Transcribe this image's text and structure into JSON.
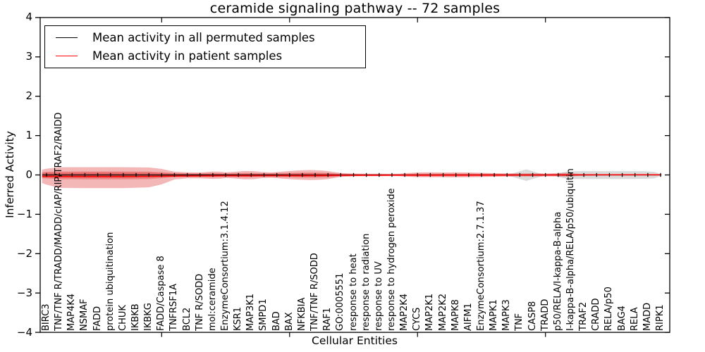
{
  "chart_data": {
    "type": "line",
    "title": "ceramide signaling pathway -- 72 samples",
    "xlabel": "Cellular Entities",
    "ylabel": "Inferred Activity",
    "ylim": [
      -4,
      4
    ],
    "ytick_values": [
      4,
      3,
      2,
      1,
      0,
      -1,
      -2,
      -3,
      -4
    ],
    "ytick_labels": [
      "4",
      "3",
      "2",
      "1",
      "0",
      "−1",
      "−2",
      "−3",
      "−4"
    ],
    "x_major_positions": [
      10,
      20,
      30,
      40
    ],
    "grid": false,
    "legend_position": "upper left",
    "categories": [
      "BIRC3",
      "TNF/TNF R/TRADD/MADD/cIAP/RIP/TRAF2/RAIDD",
      "MAP4K4",
      "NSMAF",
      "FADD",
      "protein ubiquitination",
      "CHUK",
      "IKBKB",
      "IKBKG",
      "FADD/Caspase 8",
      "TNFRSF1A",
      "BCL2",
      "TNF R/SODD",
      "mol:ceramide",
      "EnzymeConsortium:3.1.4.12",
      "KSR1",
      "MAP3K1",
      "SMPD1",
      "BAD",
      "BAX",
      "NFKBIA",
      "TNF/TNF R/SODD",
      "RAF1",
      "GO:0005551",
      "response to heat",
      "response to radiation",
      "response to UV",
      "response to hydrogen peroxide",
      "MAP2K4",
      "CYCS",
      "MAP2K1",
      "MAP2K2",
      "MAPK8",
      "AIFM1",
      "EnzymeConsortium:2.7.1.37",
      "MAPK1",
      "MAPK3",
      "TNF",
      "CASP8",
      "TRADD",
      "p50/RELA/I-kappa-B-alpha",
      "I-kappa-B-alpha/RELA/p50/ubiquitin",
      "TRAF2",
      "CRADD",
      "RELA/p50",
      "BAG4",
      "RELA",
      "MADD",
      "RIPK1"
    ],
    "series": [
      {
        "name": "Mean activity in all permuted samples",
        "color": "#000000",
        "marker": "|",
        "values": [
          0,
          0,
          0,
          0,
          0,
          0,
          0,
          0,
          0,
          0,
          0,
          0,
          0,
          0,
          0,
          0,
          0,
          0,
          0,
          0,
          0,
          0,
          0,
          0,
          0,
          0,
          0,
          0,
          0,
          0,
          0,
          0,
          0,
          0,
          0,
          0,
          0,
          0,
          0,
          0,
          0,
          0,
          0,
          0,
          0,
          0,
          0,
          0,
          0
        ]
      },
      {
        "name": "Mean activity in patient samples",
        "color": "#ff0000",
        "marker": "none",
        "values": [
          -0.037,
          -0.039,
          -0.039,
          -0.039,
          -0.039,
          -0.039,
          -0.039,
          -0.038,
          -0.036,
          -0.032,
          -0.028,
          -0.025,
          -0.023,
          -0.021,
          -0.02,
          -0.019,
          -0.019,
          -0.018,
          -0.018,
          -0.017,
          -0.016,
          -0.015,
          -0.013,
          -0.011,
          -0.009,
          -0.008,
          -0.007,
          -0.006,
          -0.006,
          -0.005,
          -0.005,
          -0.004,
          -0.004,
          -0.004,
          -0.003,
          -0.003,
          -0.003,
          -0.002,
          -0.002,
          -0.001,
          0.0,
          0.001,
          0.002,
          0.003,
          0.003,
          0.003,
          0.003,
          0.003,
          0.003
        ]
      }
    ],
    "bands": [
      {
        "name": "permuted-samples-spread-band",
        "color": "#aaaaaa",
        "opacity": 0.42,
        "points": [
          [
            39.7,
            0.004,
            -0.004
          ],
          [
            40.1,
            0.05,
            -0.06
          ],
          [
            40.7,
            0.09,
            -0.098
          ],
          [
            41.5,
            0.096,
            -0.102
          ],
          [
            43,
            0.097,
            -0.103
          ],
          [
            45,
            0.097,
            -0.103
          ],
          [
            46.8,
            0.093,
            -0.099
          ],
          [
            47.5,
            0.08,
            -0.088
          ],
          [
            47.9,
            0.03,
            -0.035
          ],
          [
            48.05,
            0.004,
            -0.004
          ]
        ]
      },
      {
        "name": "permuted-samples-spread-diamond",
        "color": "#aaaaaa",
        "opacity": 0.42,
        "points": [
          [
            35.8,
            0.003,
            -0.003
          ],
          [
            36.5,
            0.045,
            -0.055
          ],
          [
            37.5,
            0.143,
            -0.152
          ],
          [
            38.5,
            0.045,
            -0.055
          ],
          [
            39.2,
            0.003,
            -0.003
          ]
        ]
      },
      {
        "name": "patient-samples-spread-outer",
        "color": "#e03030",
        "opacity": 0.35,
        "points": [
          [
            -0.35,
            0.135,
            -0.205
          ],
          [
            0,
            0.16,
            -0.245
          ],
          [
            1,
            0.197,
            -0.33
          ],
          [
            3,
            0.197,
            -0.335
          ],
          [
            6,
            0.197,
            -0.335
          ],
          [
            8,
            0.19,
            -0.315
          ],
          [
            9,
            0.153,
            -0.24
          ],
          [
            9.6,
            0.11,
            -0.165
          ],
          [
            10,
            0.085,
            -0.115
          ],
          [
            11,
            0.066,
            -0.085
          ],
          [
            12,
            0.063,
            -0.085
          ],
          [
            13,
            0.088,
            -0.1
          ],
          [
            13.6,
            0.082,
            -0.094
          ],
          [
            14,
            0.066,
            -0.077
          ],
          [
            14.6,
            0.079,
            -0.088
          ],
          [
            15.5,
            0.1,
            -0.112
          ],
          [
            16.2,
            0.096,
            -0.107
          ],
          [
            16.8,
            0.076,
            -0.083
          ],
          [
            17.6,
            0.065,
            -0.072
          ],
          [
            18.5,
            0.088,
            -0.097
          ],
          [
            19.6,
            0.115,
            -0.118
          ],
          [
            20.6,
            0.125,
            -0.13
          ],
          [
            21.5,
            0.115,
            -0.122
          ],
          [
            22,
            0.097,
            -0.106
          ],
          [
            22.6,
            0.069,
            -0.071
          ],
          [
            23,
            0.048,
            -0.05
          ],
          [
            24,
            0.036,
            -0.036
          ],
          [
            25,
            0.032,
            -0.032
          ],
          [
            26,
            0.03,
            -0.03
          ],
          [
            27,
            0.027,
            -0.027
          ],
          [
            27.6,
            0.03,
            -0.03
          ],
          [
            28,
            0.044,
            -0.042
          ],
          [
            29,
            0.062,
            -0.056
          ],
          [
            30,
            0.066,
            -0.059
          ],
          [
            31,
            0.063,
            -0.059
          ],
          [
            32,
            0.066,
            -0.062
          ],
          [
            33,
            0.063,
            -0.059
          ],
          [
            34,
            0.054,
            -0.052
          ],
          [
            35,
            0.045,
            -0.045
          ],
          [
            36,
            0.039,
            -0.04
          ],
          [
            37,
            0.038,
            -0.038
          ],
          [
            38,
            0.041,
            -0.042
          ],
          [
            39,
            0.036,
            -0.036
          ],
          [
            40,
            0.048,
            -0.042
          ],
          [
            40.6,
            0.054,
            -0.045
          ],
          [
            41,
            0.045,
            -0.038
          ],
          [
            41.6,
            0.027,
            -0.024
          ],
          [
            42.2,
            0.02,
            -0.017
          ],
          [
            43.5,
            0.015,
            -0.012
          ],
          [
            45.5,
            0.013,
            -0.009
          ],
          [
            48.1,
            0.012,
            -0.008
          ]
        ]
      },
      {
        "name": "patient-samples-spread-mid",
        "color": "#e03030",
        "opacity": 0.35,
        "points": [
          [
            -0.35,
            0.072,
            -0.082
          ],
          [
            0,
            0.08,
            -0.09
          ],
          [
            1,
            0.09,
            -0.108
          ],
          [
            3,
            0.09,
            -0.112
          ],
          [
            6,
            0.09,
            -0.112
          ],
          [
            8,
            0.085,
            -0.105
          ],
          [
            9,
            0.072,
            -0.083
          ],
          [
            10,
            0.05,
            -0.06
          ],
          [
            11,
            0.042,
            -0.054
          ],
          [
            12,
            0.04,
            -0.054
          ],
          [
            13,
            0.05,
            -0.06
          ],
          [
            14,
            0.04,
            -0.05
          ],
          [
            15.5,
            0.052,
            -0.06
          ],
          [
            17,
            0.04,
            -0.046
          ],
          [
            18.5,
            0.048,
            -0.055
          ],
          [
            20,
            0.058,
            -0.066
          ],
          [
            21,
            0.06,
            -0.068
          ],
          [
            22,
            0.052,
            -0.06
          ],
          [
            23,
            0.032,
            -0.035
          ],
          [
            24,
            0.024,
            -0.026
          ],
          [
            26,
            0.021,
            -0.022
          ],
          [
            27.5,
            0.02,
            -0.021
          ],
          [
            29,
            0.033,
            -0.035
          ],
          [
            31,
            0.034,
            -0.036
          ],
          [
            33,
            0.034,
            -0.036
          ],
          [
            35,
            0.028,
            -0.03
          ],
          [
            37,
            0.023,
            -0.025
          ],
          [
            39,
            0.022,
            -0.024
          ],
          [
            40.5,
            0.028,
            -0.026
          ],
          [
            41.5,
            0.016,
            -0.015
          ],
          [
            42.5,
            0.01,
            -0.009
          ],
          [
            44,
            0.008,
            -0.007
          ],
          [
            48.1,
            0.007,
            -0.006
          ]
        ]
      },
      {
        "name": "patient-samples-spread-inner",
        "color": "#e03030",
        "opacity": 0.35,
        "points": [
          [
            -0.35,
            0.05,
            -0.06
          ],
          [
            0,
            0.055,
            -0.065
          ],
          [
            3,
            0.06,
            -0.075
          ],
          [
            6,
            0.06,
            -0.075
          ],
          [
            8,
            0.055,
            -0.07
          ],
          [
            9,
            0.045,
            -0.055
          ],
          [
            10,
            0.035,
            -0.042
          ],
          [
            12,
            0.028,
            -0.038
          ],
          [
            14,
            0.028,
            -0.035
          ],
          [
            16,
            0.032,
            -0.04
          ],
          [
            18,
            0.028,
            -0.034
          ],
          [
            20,
            0.04,
            -0.048
          ],
          [
            21,
            0.042,
            -0.05
          ],
          [
            22,
            0.036,
            -0.042
          ],
          [
            23,
            0.022,
            -0.025
          ],
          [
            25,
            0.016,
            -0.017
          ],
          [
            27.5,
            0.014,
            -0.015
          ],
          [
            29,
            0.022,
            -0.024
          ],
          [
            31,
            0.023,
            -0.025
          ],
          [
            33,
            0.023,
            -0.025
          ],
          [
            35,
            0.019,
            -0.02
          ],
          [
            37,
            0.016,
            -0.017
          ],
          [
            39,
            0.015,
            -0.016
          ],
          [
            40.5,
            0.018,
            -0.017
          ],
          [
            41.5,
            0.011,
            -0.01
          ],
          [
            43,
            0.007,
            -0.006
          ],
          [
            48.05,
            0.005,
            -0.004
          ]
        ]
      }
    ]
  },
  "legend": {
    "items": [
      {
        "label": "Mean activity in all permuted samples",
        "color": "#000000"
      },
      {
        "label": "Mean activity in patient samples",
        "color": "#ff0000"
      }
    ]
  }
}
